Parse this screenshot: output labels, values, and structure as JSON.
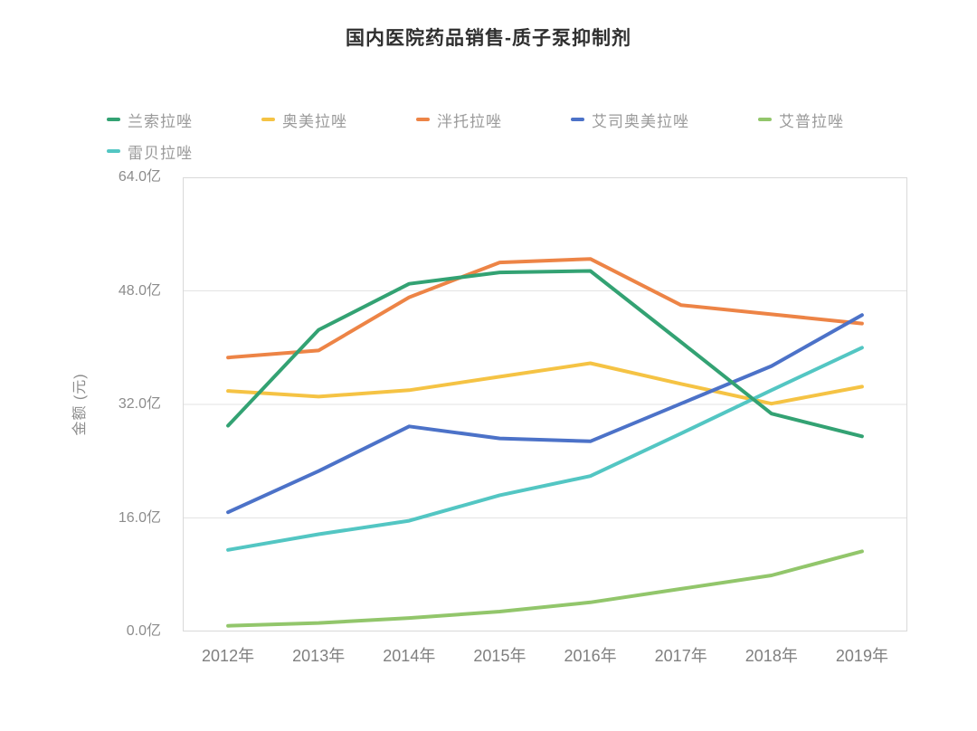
{
  "page": {
    "background": "#ffffff"
  },
  "chart_data": {
    "type": "line",
    "title": "国内医院药品销售-质子泵抑制剂",
    "ylabel": "金额 (元)",
    "xlabel": "",
    "categories": [
      "2012年",
      "2013年",
      "2014年",
      "2015年",
      "2016年",
      "2017年",
      "2018年",
      "2019年"
    ],
    "series": [
      {
        "name": "兰索拉唑",
        "color": "#33A273",
        "z": 6,
        "values": [
          29.0,
          42.5,
          49.0,
          50.6,
          50.8,
          40.8,
          30.7,
          27.5
        ]
      },
      {
        "name": "奥美拉唑",
        "color": "#F5C344",
        "z": 1,
        "values": [
          33.9,
          33.1,
          34.0,
          35.9,
          37.8,
          34.9,
          32.1,
          34.5
        ]
      },
      {
        "name": "泮托拉唑",
        "color": "#ED8446",
        "z": 2,
        "values": [
          38.6,
          39.6,
          47.1,
          52.0,
          52.5,
          46.0,
          44.7,
          43.4
        ]
      },
      {
        "name": "艾司奥美拉唑",
        "color": "#4C72C8",
        "z": 3,
        "values": [
          16.8,
          22.6,
          28.9,
          27.2,
          26.8,
          32.1,
          37.4,
          44.6
        ]
      },
      {
        "name": "艾普拉唑",
        "color": "#92C66B",
        "z": 5,
        "values": [
          0.8,
          1.2,
          1.9,
          2.8,
          4.1,
          6.0,
          7.9,
          11.3
        ]
      },
      {
        "name": "雷贝拉唑",
        "color": "#53C6C3",
        "z": 4,
        "values": [
          11.5,
          13.7,
          15.6,
          19.2,
          21.9,
          27.9,
          34.0,
          40.0
        ]
      }
    ],
    "ylim": [
      0,
      64
    ],
    "yticks": [
      {
        "value": 0,
        "label": "0.0亿"
      },
      {
        "value": 16,
        "label": "16.0亿"
      },
      {
        "value": 32,
        "label": "32.0亿"
      },
      {
        "value": 48,
        "label": "48.0亿"
      },
      {
        "value": 64,
        "label": "64.0亿"
      }
    ],
    "grid": true,
    "legend_position": "top-left",
    "legend_row_break": 5,
    "grid_color": "#E3E3E3",
    "axis_border_color": "#D9D9D9",
    "line_width": 4
  }
}
